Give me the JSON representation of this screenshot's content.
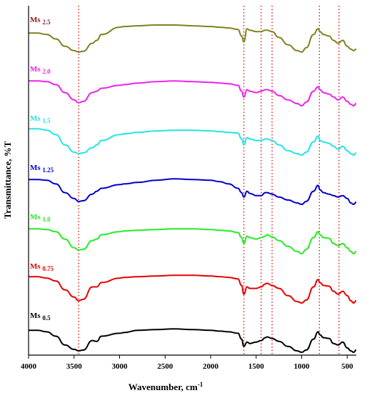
{
  "chart_data": {
    "type": "line",
    "xlabel": "Wavenumber, cm",
    "xlabel_superscript": "-1",
    "ylabel": "Transmittance, %T",
    "xlim": [
      4000,
      400
    ],
    "x_reversed": true,
    "x_ticks": [
      4000,
      3500,
      3000,
      2500,
      2000,
      1500,
      1000,
      500
    ],
    "y_ticks_shown": false,
    "grid": false,
    "reference_lines": [
      3450,
      1635,
      1445,
      1325,
      805,
      590
    ],
    "reference_line_color": "#e60000",
    "x": [
      4000,
      3900,
      3800,
      3700,
      3600,
      3500,
      3450,
      3400,
      3300,
      3250,
      3200,
      3000,
      2950,
      2800,
      2600,
      2400,
      2200,
      2000,
      1900,
      1800,
      1700,
      1660,
      1635,
      1600,
      1570,
      1500,
      1445,
      1400,
      1380,
      1325,
      1250,
      1150,
      1050,
      1000,
      950,
      870,
      820,
      800,
      760,
      700,
      650,
      600,
      550,
      500,
      460,
      430,
      400
    ],
    "series": [
      {
        "name": "Ms",
        "subscript": "0.5",
        "color": "#000000",
        "label_color": "#000000",
        "values": [
          30,
          30,
          28,
          22,
          10,
          4,
          2,
          3,
          16,
          15,
          22,
          26,
          27,
          30,
          31,
          32,
          31,
          30,
          29,
          28,
          26,
          18,
          8,
          14,
          12,
          14,
          16,
          20,
          21,
          19,
          15,
          8,
          2,
          0,
          3,
          18,
          28,
          24,
          20,
          19,
          12,
          10,
          14,
          6,
          2,
          0,
          3
        ]
      },
      {
        "name": "Ms",
        "subscript": "0.75",
        "color": "#e60000",
        "label_color": "#e60000",
        "values": [
          36,
          36,
          34,
          30,
          18,
          8,
          3,
          5,
          22,
          22,
          28,
          34,
          35,
          36,
          37,
          38,
          38,
          37,
          36,
          35,
          33,
          24,
          12,
          22,
          20,
          20,
          22,
          26,
          27,
          24,
          20,
          10,
          2,
          0,
          4,
          22,
          32,
          28,
          24,
          23,
          16,
          12,
          16,
          10,
          3,
          0,
          3
        ]
      },
      {
        "name": "Ms",
        "subscript": "1.0",
        "color": "#22ee22",
        "label_color": "#22ee22",
        "values": [
          34,
          34,
          33,
          30,
          20,
          8,
          5,
          6,
          18,
          20,
          26,
          30,
          31,
          32,
          33,
          34,
          34,
          33,
          32,
          31,
          29,
          22,
          14,
          24,
          22,
          20,
          22,
          24,
          26,
          23,
          18,
          10,
          3,
          0,
          6,
          22,
          30,
          26,
          22,
          21,
          14,
          11,
          14,
          8,
          3,
          0,
          3
        ]
      },
      {
        "name": "Ms",
        "subscript": "1.25",
        "color": "#0000cc",
        "label_color": "#0000cc",
        "values": [
          34,
          34,
          33,
          28,
          16,
          8,
          4,
          5,
          14,
          18,
          22,
          27,
          28,
          30,
          33,
          35,
          34,
          33,
          31,
          28,
          22,
          16,
          10,
          18,
          15,
          12,
          12,
          16,
          16,
          14,
          10,
          6,
          2,
          0,
          4,
          18,
          26,
          20,
          16,
          14,
          12,
          10,
          12,
          8,
          2,
          0,
          3
        ]
      },
      {
        "name": "Ms",
        "subscript": "1.5",
        "color": "#22e5e5",
        "label_color": "#22e5e5",
        "values": [
          36,
          36,
          34,
          28,
          14,
          4,
          2,
          3,
          10,
          14,
          20,
          28,
          29,
          31,
          33,
          34,
          34,
          33,
          32,
          31,
          30,
          22,
          14,
          24,
          22,
          20,
          20,
          22,
          22,
          20,
          14,
          6,
          2,
          0,
          4,
          18,
          26,
          20,
          18,
          16,
          12,
          8,
          12,
          6,
          2,
          0,
          3
        ]
      },
      {
        "name": "Ms",
        "subscript": "2.0",
        "color": "#ee22ee",
        "label_color": "#ee22ee",
        "values": [
          34,
          34,
          33,
          29,
          18,
          8,
          4,
          6,
          18,
          20,
          24,
          28,
          29,
          31,
          33,
          34,
          33,
          32,
          31,
          30,
          28,
          20,
          12,
          22,
          20,
          18,
          20,
          22,
          22,
          20,
          14,
          8,
          3,
          0,
          5,
          20,
          26,
          22,
          18,
          16,
          12,
          8,
          12,
          6,
          2,
          0,
          3
        ]
      },
      {
        "name": "Ms",
        "subscript": "2.5",
        "color": "#808020",
        "label_color": "#8b1a1a",
        "values": [
          32,
          32,
          30,
          24,
          14,
          8,
          6,
          7,
          18,
          22,
          30,
          40,
          41,
          42,
          43,
          43,
          42,
          41,
          40,
          39,
          37,
          28,
          20,
          38,
          36,
          34,
          34,
          36,
          36,
          34,
          26,
          16,
          8,
          6,
          12,
          30,
          38,
          34,
          30,
          28,
          22,
          18,
          22,
          14,
          10,
          8,
          10
        ]
      }
    ]
  }
}
